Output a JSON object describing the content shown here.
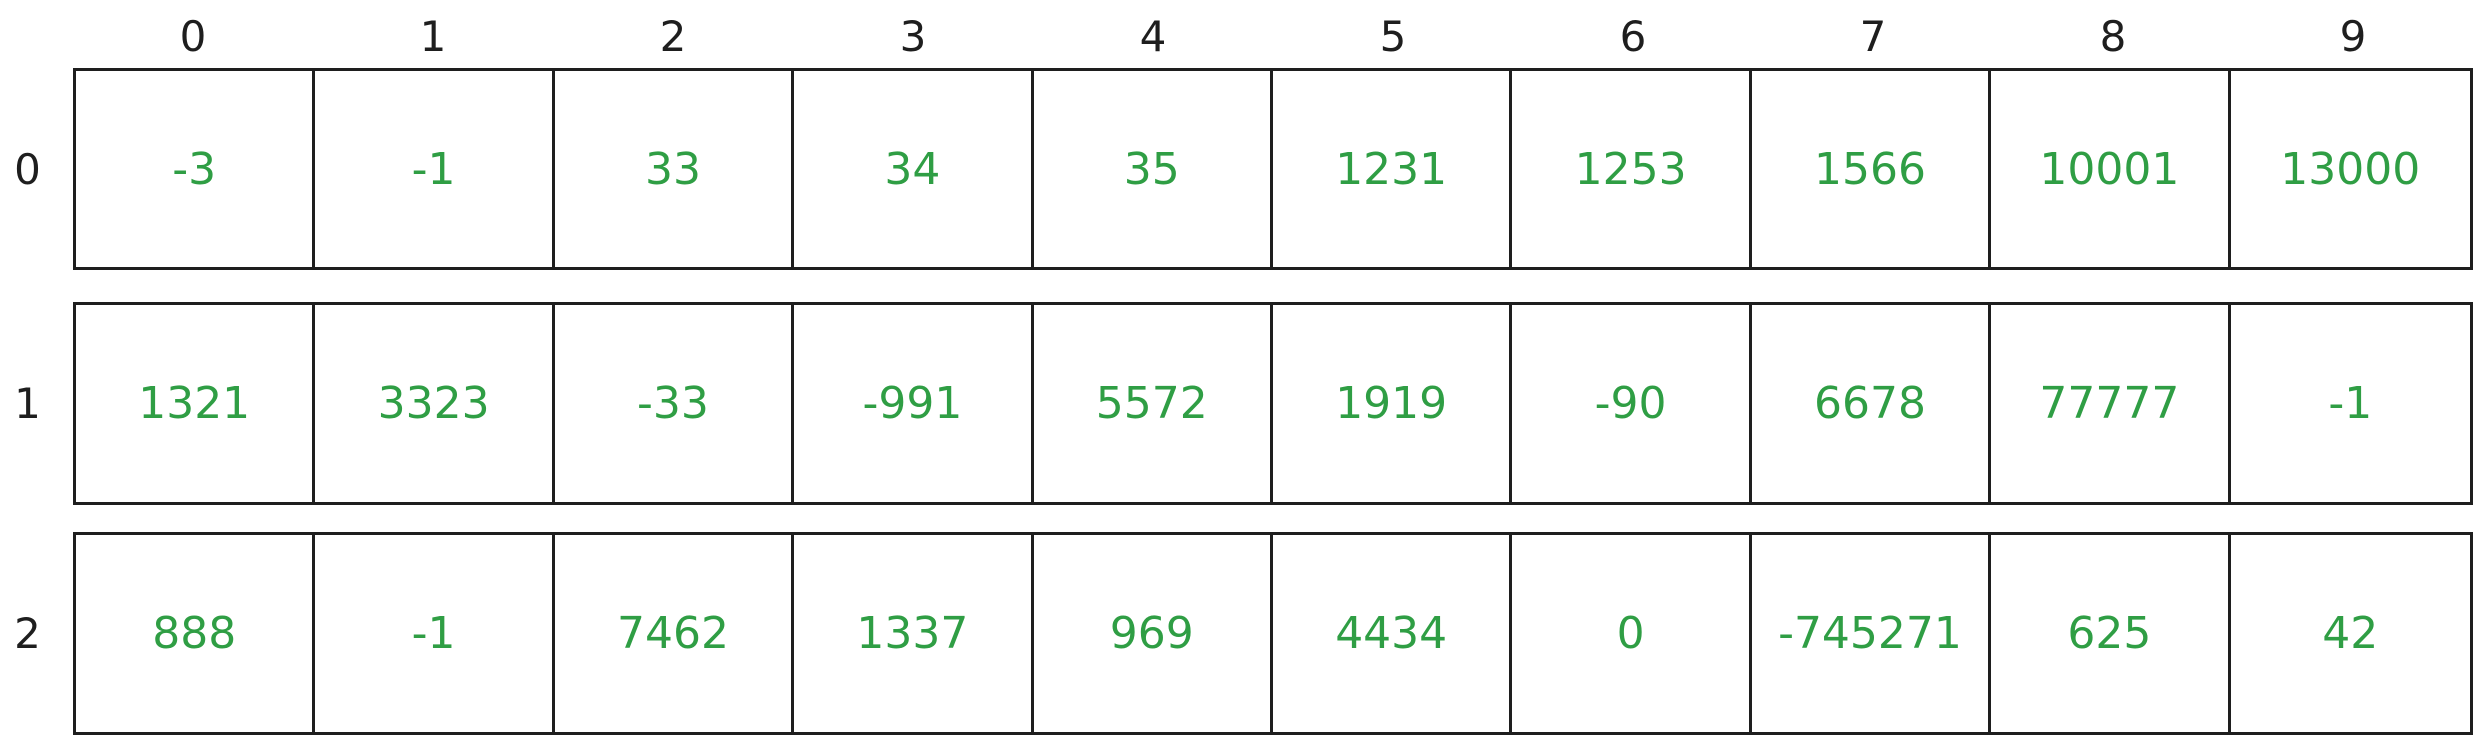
{
  "columns": [
    "0",
    "1",
    "2",
    "3",
    "4",
    "5",
    "6",
    "7",
    "8",
    "9"
  ],
  "rows": [
    {
      "label": "0",
      "cells": [
        "-3",
        "-1",
        "33",
        "34",
        "35",
        "1231",
        "1253",
        "1566",
        "10001",
        "13000"
      ]
    },
    {
      "label": "1",
      "cells": [
        "1321",
        "3323",
        "-33",
        "-991",
        "5572",
        "1919",
        "-90",
        "6678",
        "77777",
        "-1"
      ]
    },
    {
      "label": "2",
      "cells": [
        "888",
        "-1",
        "7462",
        "1337",
        "969",
        "4434",
        "0",
        "-745271",
        "625",
        "42"
      ]
    }
  ],
  "colors": {
    "value_text": "#2f9e44",
    "stroke": "#1e1e1e",
    "background": "#ffffff"
  }
}
